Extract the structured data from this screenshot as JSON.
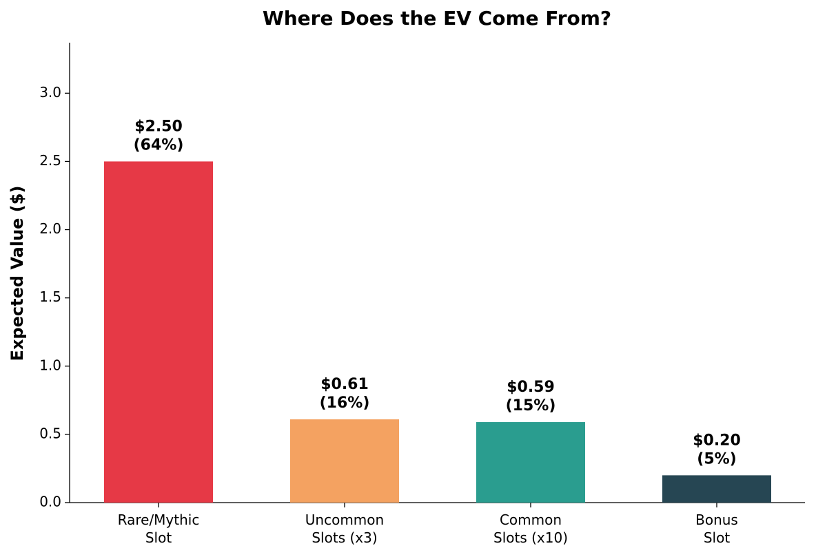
{
  "chart_data": {
    "type": "bar",
    "title": "Where Does the EV Come From?",
    "y_label": "Expected Value ($)",
    "categories": [
      "Rare/Mythic\nSlot",
      "Uncommon\nSlots (x3)",
      "Common\nSlots (x10)",
      "Bonus\nSlot"
    ],
    "values": [
      2.5,
      0.61,
      0.59,
      0.2
    ],
    "value_labels": [
      "$2.50\n(64%)",
      "$0.61\n(16%)",
      "$0.59\n(15%)",
      "$0.20\n(5%)"
    ],
    "colors": [
      "#e63946",
      "#f4a261",
      "#2a9d8f",
      "#264653"
    ],
    "ylim": [
      0,
      3.37
    ],
    "yticks": [
      {
        "value": 0,
        "label": "0.0"
      },
      {
        "value": 0.5,
        "label": "0.5"
      },
      {
        "value": 1,
        "label": "1.0"
      },
      {
        "value": 1.5,
        "label": "1.5"
      },
      {
        "value": 2,
        "label": "2.0"
      },
      {
        "value": 2.5,
        "label": "2.5"
      },
      {
        "value": 3,
        "label": "3.0"
      }
    ],
    "grid": false
  }
}
